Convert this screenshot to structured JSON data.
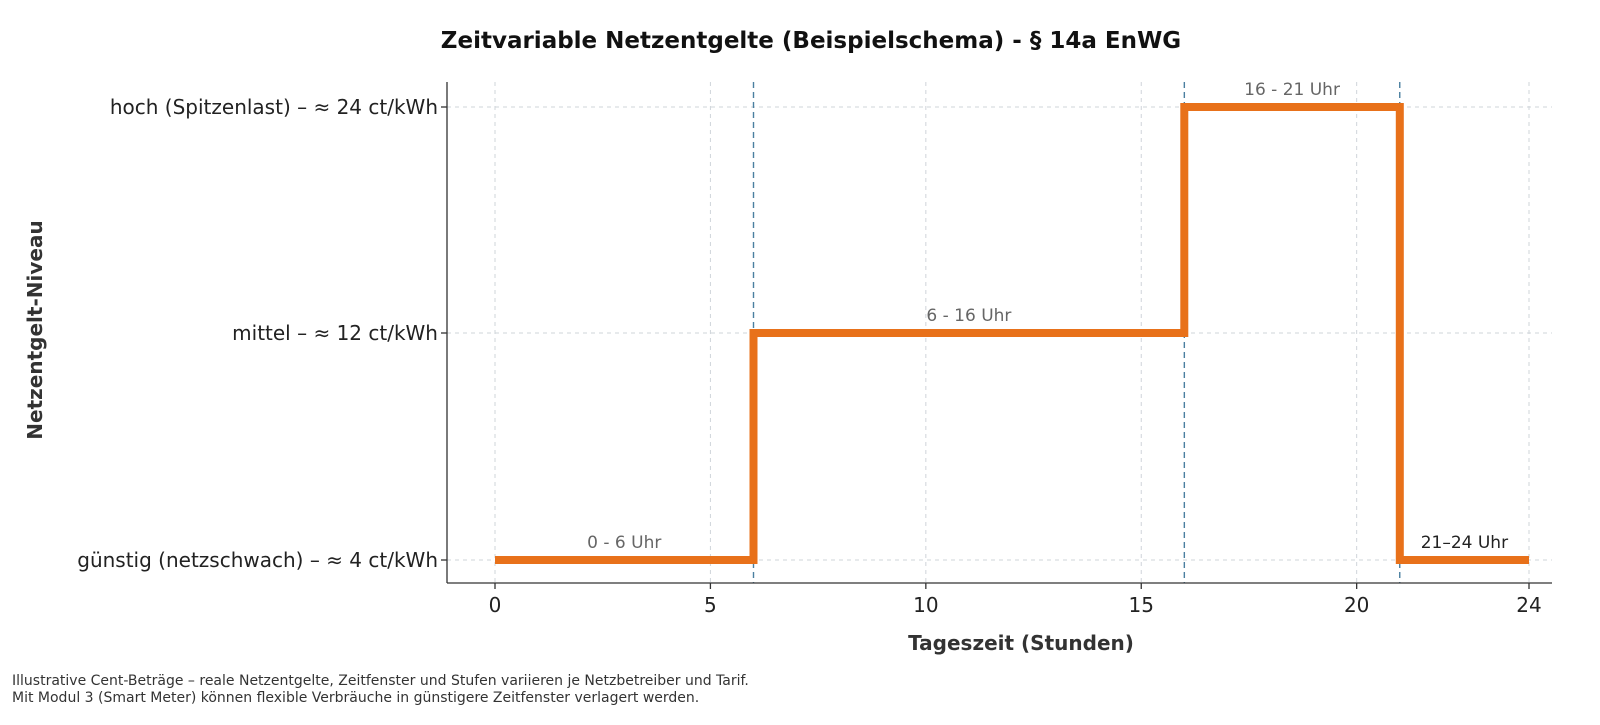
{
  "chart_data": {
    "type": "line",
    "title": "Zeitvariable Netzentgelte (Beispielschema) - § 14a EnWG",
    "xlabel": "Tageszeit (Stunden)",
    "ylabel": "Netzentgelt-Niveau",
    "xlim": [
      0,
      24
    ],
    "x_ticks": [
      0,
      5,
      10,
      15,
      20,
      24
    ],
    "y_levels": [
      {
        "value": 4,
        "label": "günstig (netzschwach) – ≈ 4 ct/kWh"
      },
      {
        "value": 12,
        "label": "mittel – ≈ 12 ct/kWh"
      },
      {
        "value": 24,
        "label": "hoch (Spitzenlast) – ≈ 24 ct/kWh"
      }
    ],
    "grid": true,
    "series": [
      {
        "color": "#e8711a",
        "step": true,
        "points": [
          [
            0,
            4
          ],
          [
            6,
            4
          ],
          [
            6,
            12
          ],
          [
            16,
            12
          ],
          [
            16,
            24
          ],
          [
            21,
            24
          ],
          [
            21,
            4
          ],
          [
            24,
            4
          ]
        ]
      }
    ],
    "vertical_markers": [
      6,
      16,
      21
    ],
    "annotations": [
      {
        "text": "0 - 6 Uhr",
        "x": 3,
        "y": 4,
        "style": "muted"
      },
      {
        "text": "6 - 16 Uhr",
        "x": 11,
        "y": 12,
        "style": "muted"
      },
      {
        "text": "16 - 21 Uhr",
        "x": 18.5,
        "y": 24,
        "style": "muted"
      },
      {
        "text": "21–24 Uhr",
        "x": 22.5,
        "y": 4,
        "style": "dark"
      }
    ],
    "footnotes": [
      "Illustrative Cent-Beträge – reale Netzentgelte, Zeitfenster und Stufen variieren je Netzbetreiber und Tarif.",
      "Mit Modul 3 (Smart Meter) können flexible Verbräuche in günstigere Zeitfenster verlagert werden."
    ]
  }
}
